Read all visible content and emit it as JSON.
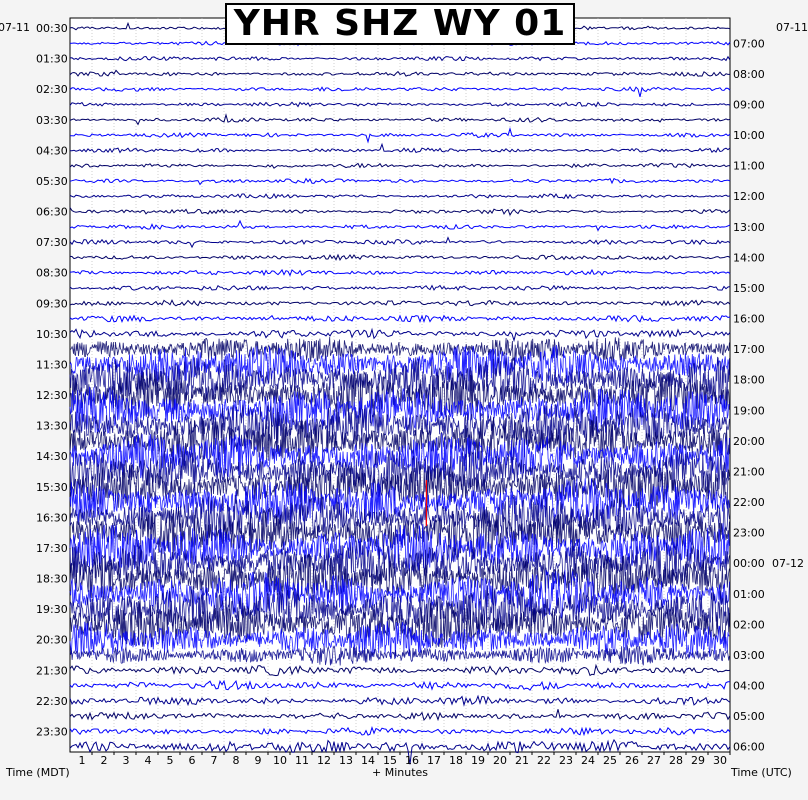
{
  "title": "YHR SHZ WY 01",
  "dates": {
    "left": "07-11",
    "right": "07-11",
    "next": "07-12"
  },
  "axis_titles": {
    "left": "Time (MDT)",
    "bottom": "+ Minutes",
    "right": "Time (UTC)"
  },
  "colors": {
    "trace_dark": "#000066",
    "trace_blue": "#0000ff",
    "trace_navy": "#00008b",
    "grid": "#bbbbbb",
    "event": "#ff0000",
    "background": "#ffffff"
  },
  "chart_data": {
    "type": "line",
    "title": "YHR SHZ WY 01",
    "xlabel": "+ Minutes",
    "ylabel_left": "Time (MDT)",
    "ylabel_right": "Time (UTC)",
    "xlim": [
      0,
      30
    ],
    "x_ticks": [
      "1",
      "2",
      "3",
      "4",
      "5",
      "6",
      "7",
      "8",
      "9",
      "10",
      "11",
      "12",
      "13",
      "14",
      "15",
      "16",
      "17",
      "18",
      "19",
      "20",
      "21",
      "22",
      "23",
      "24",
      "25",
      "26",
      "27",
      "28",
      "29",
      "30"
    ],
    "traces_per_hour": 2,
    "trace_count": 48,
    "trace_colors_cycle": [
      "#000066",
      "#0000ff",
      "#00008b"
    ],
    "left_labels": [
      "00:30",
      "01:30",
      "02:30",
      "03:30",
      "04:30",
      "05:30",
      "06:30",
      "07:30",
      "08:30",
      "09:30",
      "10:30",
      "11:30",
      "12:30",
      "13:30",
      "14:30",
      "15:30",
      "16:30",
      "17:30",
      "18:30",
      "19:30",
      "20:30",
      "21:30",
      "22:30",
      "23:30"
    ],
    "right_labels": [
      "07:00",
      "08:00",
      "09:00",
      "10:00",
      "11:00",
      "12:00",
      "13:00",
      "14:00",
      "15:00",
      "16:00",
      "17:00",
      "18:00",
      "19:00",
      "20:00",
      "21:00",
      "22:00",
      "23:00",
      "00:00",
      "01:00",
      "02:00",
      "03:00",
      "04:00",
      "05:00",
      "06:00"
    ],
    "right_date_change_index": 17,
    "activity_level": [
      0.06,
      0.05,
      0.05,
      0.05,
      0.05,
      0.05,
      0.05,
      0.05,
      0.05,
      0.05,
      0.05,
      0.05,
      0.05,
      0.05,
      0.06,
      0.06,
      0.07,
      0.07,
      0.08,
      0.1,
      0.15,
      0.55,
      0.85,
      1.0,
      1.0,
      1.0,
      1.0,
      1.0,
      1.0,
      1.0,
      1.0,
      1.0,
      1.0,
      1.0,
      1.0,
      1.0,
      1.0,
      1.0,
      1.0,
      0.95,
      0.75,
      0.4,
      0.18,
      0.15,
      0.15,
      0.12,
      0.12,
      0.25
    ],
    "event_marker": {
      "trace": 31,
      "minute": 16.2
    }
  }
}
